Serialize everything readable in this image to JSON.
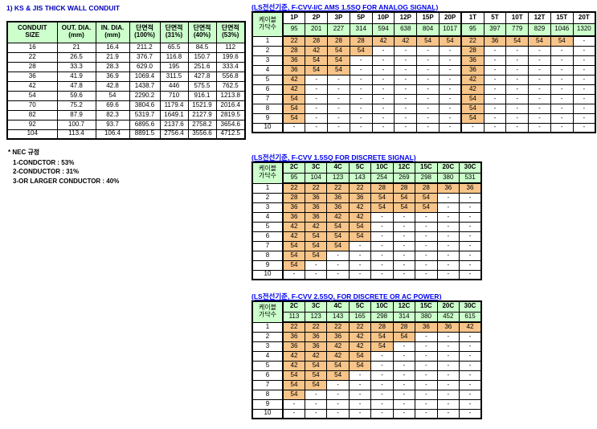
{
  "left": {
    "title": "1) KS & JIS THICK WALL CONDUIT",
    "table": {
      "headers": [
        [
          "CONDUIT",
          "SIZE"
        ],
        [
          "OUT. DIA.",
          "(mm)"
        ],
        [
          "IN. DIA.",
          "(mm)"
        ],
        [
          "단면적",
          "(100%)"
        ],
        [
          "단면적",
          "(31%)"
        ],
        [
          "단면적",
          "(40%)"
        ],
        [
          "단면적",
          "(53%)"
        ]
      ],
      "rows": [
        [
          "16",
          "21",
          "16.4",
          "211.2",
          "65.5",
          "84.5",
          "112"
        ],
        [
          "22",
          "26.5",
          "21.9",
          "376.7",
          "116.8",
          "150.7",
          "199.6"
        ],
        [
          "28",
          "33.3",
          "28.3",
          "629.0",
          "195",
          "251.6",
          "333.4"
        ],
        [
          "36",
          "41.9",
          "36.9",
          "1069.4",
          "311.5",
          "427.8",
          "556.8"
        ],
        [
          "42",
          "47.8",
          "42.8",
          "1438.7",
          "446",
          "575.5",
          "762.5"
        ],
        [
          "54",
          "59.6",
          "54",
          "2290.2",
          "710",
          "916.1",
          "1213.8"
        ],
        [
          "70",
          "75.2",
          "69.6",
          "3804.6",
          "1179.4",
          "1521.9",
          "2016.4"
        ],
        [
          "82",
          "87.9",
          "82.3",
          "5319.7",
          "1649.1",
          "2127.9",
          "2819.5"
        ],
        [
          "92",
          "100.7",
          "93.7",
          "6895.6",
          "2137.6",
          "2758.2",
          "3654.6"
        ],
        [
          "104",
          "113.4",
          "106.4",
          "8891.5",
          "2756.4",
          "3556.6",
          "4712.5"
        ]
      ]
    },
    "notes": {
      "title": "* NEC 규정",
      "lines": [
        "1-CONDCTOR : 53%",
        "2-CONDUCTOR : 31%",
        "3-OR LARGER CONDUCTOR : 40%"
      ]
    }
  },
  "right": {
    "tables": [
      {
        "title": "(LS전선기준, F-CVV-I/C AMS 1.5SQ FOR ANALOG SIGNAL)",
        "corner": [
          "케이블",
          "가닥수"
        ],
        "labels_green": false,
        "split_after": 8,
        "col_labels": [
          "1P",
          "2P",
          "3P",
          "5P",
          "10P",
          "12P",
          "15P",
          "20P",
          "1T",
          "5T",
          "10T",
          "12T",
          "15T",
          "20T"
        ],
        "col_values": [
          "95",
          "201",
          "227",
          "314",
          "594",
          "638",
          "804",
          "1017",
          "95",
          "397",
          "779",
          "829",
          "1046",
          "1320"
        ],
        "rows": [
          {
            "label": "1",
            "cells": [
              "22",
              "28",
              "28",
              "28",
              "42",
              "42",
              "54",
              "54",
              "22",
              "36",
              "54",
              "54",
              "54",
              "-"
            ]
          },
          {
            "label": "2",
            "cells": [
              "28",
              "42",
              "54",
              "54",
              "-",
              "-",
              "-",
              "-",
              "28",
              "-",
              "-",
              "-",
              "-",
              "-"
            ]
          },
          {
            "label": "3",
            "cells": [
              "36",
              "54",
              "54",
              "-",
              "-",
              "-",
              "-",
              "-",
              "36",
              "-",
              "-",
              "-",
              "-",
              "-"
            ]
          },
          {
            "label": "4",
            "cells": [
              "36",
              "54",
              "54",
              "-",
              "-",
              "-",
              "-",
              "-",
              "36",
              "-",
              "-",
              "-",
              "-",
              "-"
            ]
          },
          {
            "label": "5",
            "cells": [
              "42",
              "-",
              "-",
              "-",
              "-",
              "-",
              "-",
              "-",
              "42",
              "-",
              "-",
              "-",
              "-",
              "-"
            ]
          },
          {
            "label": "6",
            "cells": [
              "42",
              "-",
              "-",
              "-",
              "-",
              "-",
              "-",
              "-",
              "42",
              "-",
              "-",
              "-",
              "-",
              "-"
            ]
          },
          {
            "label": "7",
            "cells": [
              "54",
              "-",
              "-",
              "-",
              "-",
              "-",
              "-",
              "-",
              "54",
              "-",
              "-",
              "-",
              "-",
              "-"
            ]
          },
          {
            "label": "8",
            "cells": [
              "54",
              "-",
              "-",
              "-",
              "-",
              "-",
              "-",
              "-",
              "54",
              "-",
              "-",
              "-",
              "-",
              "-"
            ]
          },
          {
            "label": "9",
            "cells": [
              "54",
              "-",
              "-",
              "-",
              "-",
              "-",
              "-",
              "-",
              "54",
              "-",
              "-",
              "-",
              "-",
              "-"
            ]
          },
          {
            "label": "10",
            "cells": [
              "-",
              "-",
              "-",
              "-",
              "-",
              "-",
              "-",
              "-",
              "-",
              "-",
              "-",
              "-",
              "-",
              "-"
            ]
          }
        ]
      },
      {
        "title": "(LS전선기준, F-CVV 1.5SQ FOR DISCRETE SIGNAL)",
        "corner": [
          "케이블",
          "가닥수"
        ],
        "labels_green": true,
        "split_after": -1,
        "col_labels": [
          "2C",
          "3C",
          "4C",
          "5C",
          "10C",
          "12C",
          "15C",
          "20C",
          "30C"
        ],
        "col_values": [
          "95",
          "104",
          "123",
          "143",
          "254",
          "269",
          "298",
          "380",
          "531"
        ],
        "rows": [
          {
            "label": "1",
            "cells": [
              "22",
              "22",
              "22",
              "22",
              "28",
              "28",
              "28",
              "36",
              "36"
            ]
          },
          {
            "label": "2",
            "cells": [
              "28",
              "36",
              "36",
              "36",
              "54",
              "54",
              "54",
              "-",
              "-"
            ]
          },
          {
            "label": "3",
            "cells": [
              "36",
              "36",
              "36",
              "42",
              "54",
              "54",
              "54",
              "-",
              "-"
            ]
          },
          {
            "label": "4",
            "cells": [
              "36",
              "36",
              "42",
              "42",
              "-",
              "-",
              "-",
              "-",
              "-"
            ]
          },
          {
            "label": "5",
            "cells": [
              "42",
              "42",
              "54",
              "54",
              "-",
              "-",
              "-",
              "-",
              "-"
            ]
          },
          {
            "label": "6",
            "cells": [
              "42",
              "54",
              "54",
              "54",
              "-",
              "-",
              "-",
              "-",
              "-"
            ]
          },
          {
            "label": "7",
            "cells": [
              "54",
              "54",
              "54",
              "-",
              "-",
              "-",
              "-",
              "-",
              "-"
            ]
          },
          {
            "label": "8",
            "cells": [
              "54",
              "54",
              "-",
              "-",
              "-",
              "-",
              "-",
              "-",
              "-"
            ]
          },
          {
            "label": "9",
            "cells": [
              "54",
              "-",
              "-",
              "-",
              "-",
              "-",
              "-",
              "-",
              "-"
            ]
          },
          {
            "label": "10",
            "cells": [
              "-",
              "-",
              "-",
              "-",
              "-",
              "-",
              "-",
              "-",
              "-"
            ]
          }
        ]
      },
      {
        "title": "(LS전선기준, F-CVV 2.5SQ, FOR DISCRETE OR AC POWER)",
        "corner": [
          "케이블",
          "가닥수"
        ],
        "labels_green": true,
        "split_after": -1,
        "col_labels": [
          "2C",
          "3C",
          "4C",
          "5C",
          "10C",
          "12C",
          "15C",
          "20C",
          "30C"
        ],
        "col_values": [
          "113",
          "123",
          "143",
          "165",
          "298",
          "314",
          "380",
          "452",
          "615"
        ],
        "rows": [
          {
            "label": "1",
            "cells": [
              "22",
              "22",
              "22",
              "22",
              "28",
              "28",
              "36",
              "36",
              "42"
            ]
          },
          {
            "label": "2",
            "cells": [
              "36",
              "36",
              "36",
              "42",
              "54",
              "54",
              "-",
              "-",
              "-"
            ]
          },
          {
            "label": "3",
            "cells": [
              "36",
              "36",
              "42",
              "42",
              "54",
              "-",
              "-",
              "-",
              "-"
            ]
          },
          {
            "label": "4",
            "cells": [
              "42",
              "42",
              "42",
              "54",
              "-",
              "-",
              "-",
              "-",
              "-"
            ]
          },
          {
            "label": "5",
            "cells": [
              "42",
              "54",
              "54",
              "54",
              "-",
              "-",
              "-",
              "-",
              "-"
            ]
          },
          {
            "label": "6",
            "cells": [
              "54",
              "54",
              "54",
              "-",
              "-",
              "-",
              "-",
              "-",
              "-"
            ]
          },
          {
            "label": "7",
            "cells": [
              "54",
              "54",
              "-",
              "-",
              "-",
              "-",
              "-",
              "-",
              "-"
            ]
          },
          {
            "label": "8",
            "cells": [
              "54",
              "-",
              "-",
              "-",
              "-",
              "-",
              "-",
              "-",
              "-"
            ]
          },
          {
            "label": "9",
            "cells": [
              "-",
              "-",
              "-",
              "-",
              "-",
              "-",
              "-",
              "-",
              "-"
            ]
          },
          {
            "label": "10",
            "cells": [
              "-",
              "-",
              "-",
              "-",
              "-",
              "-",
              "-",
              "-",
              "-"
            ]
          }
        ]
      }
    ]
  },
  "colors": {
    "header_green": "#CCFFCC",
    "cell_orange": "#F7C489",
    "right_title_blue": "#0000EE",
    "left_title_blue": "#0000BB"
  }
}
